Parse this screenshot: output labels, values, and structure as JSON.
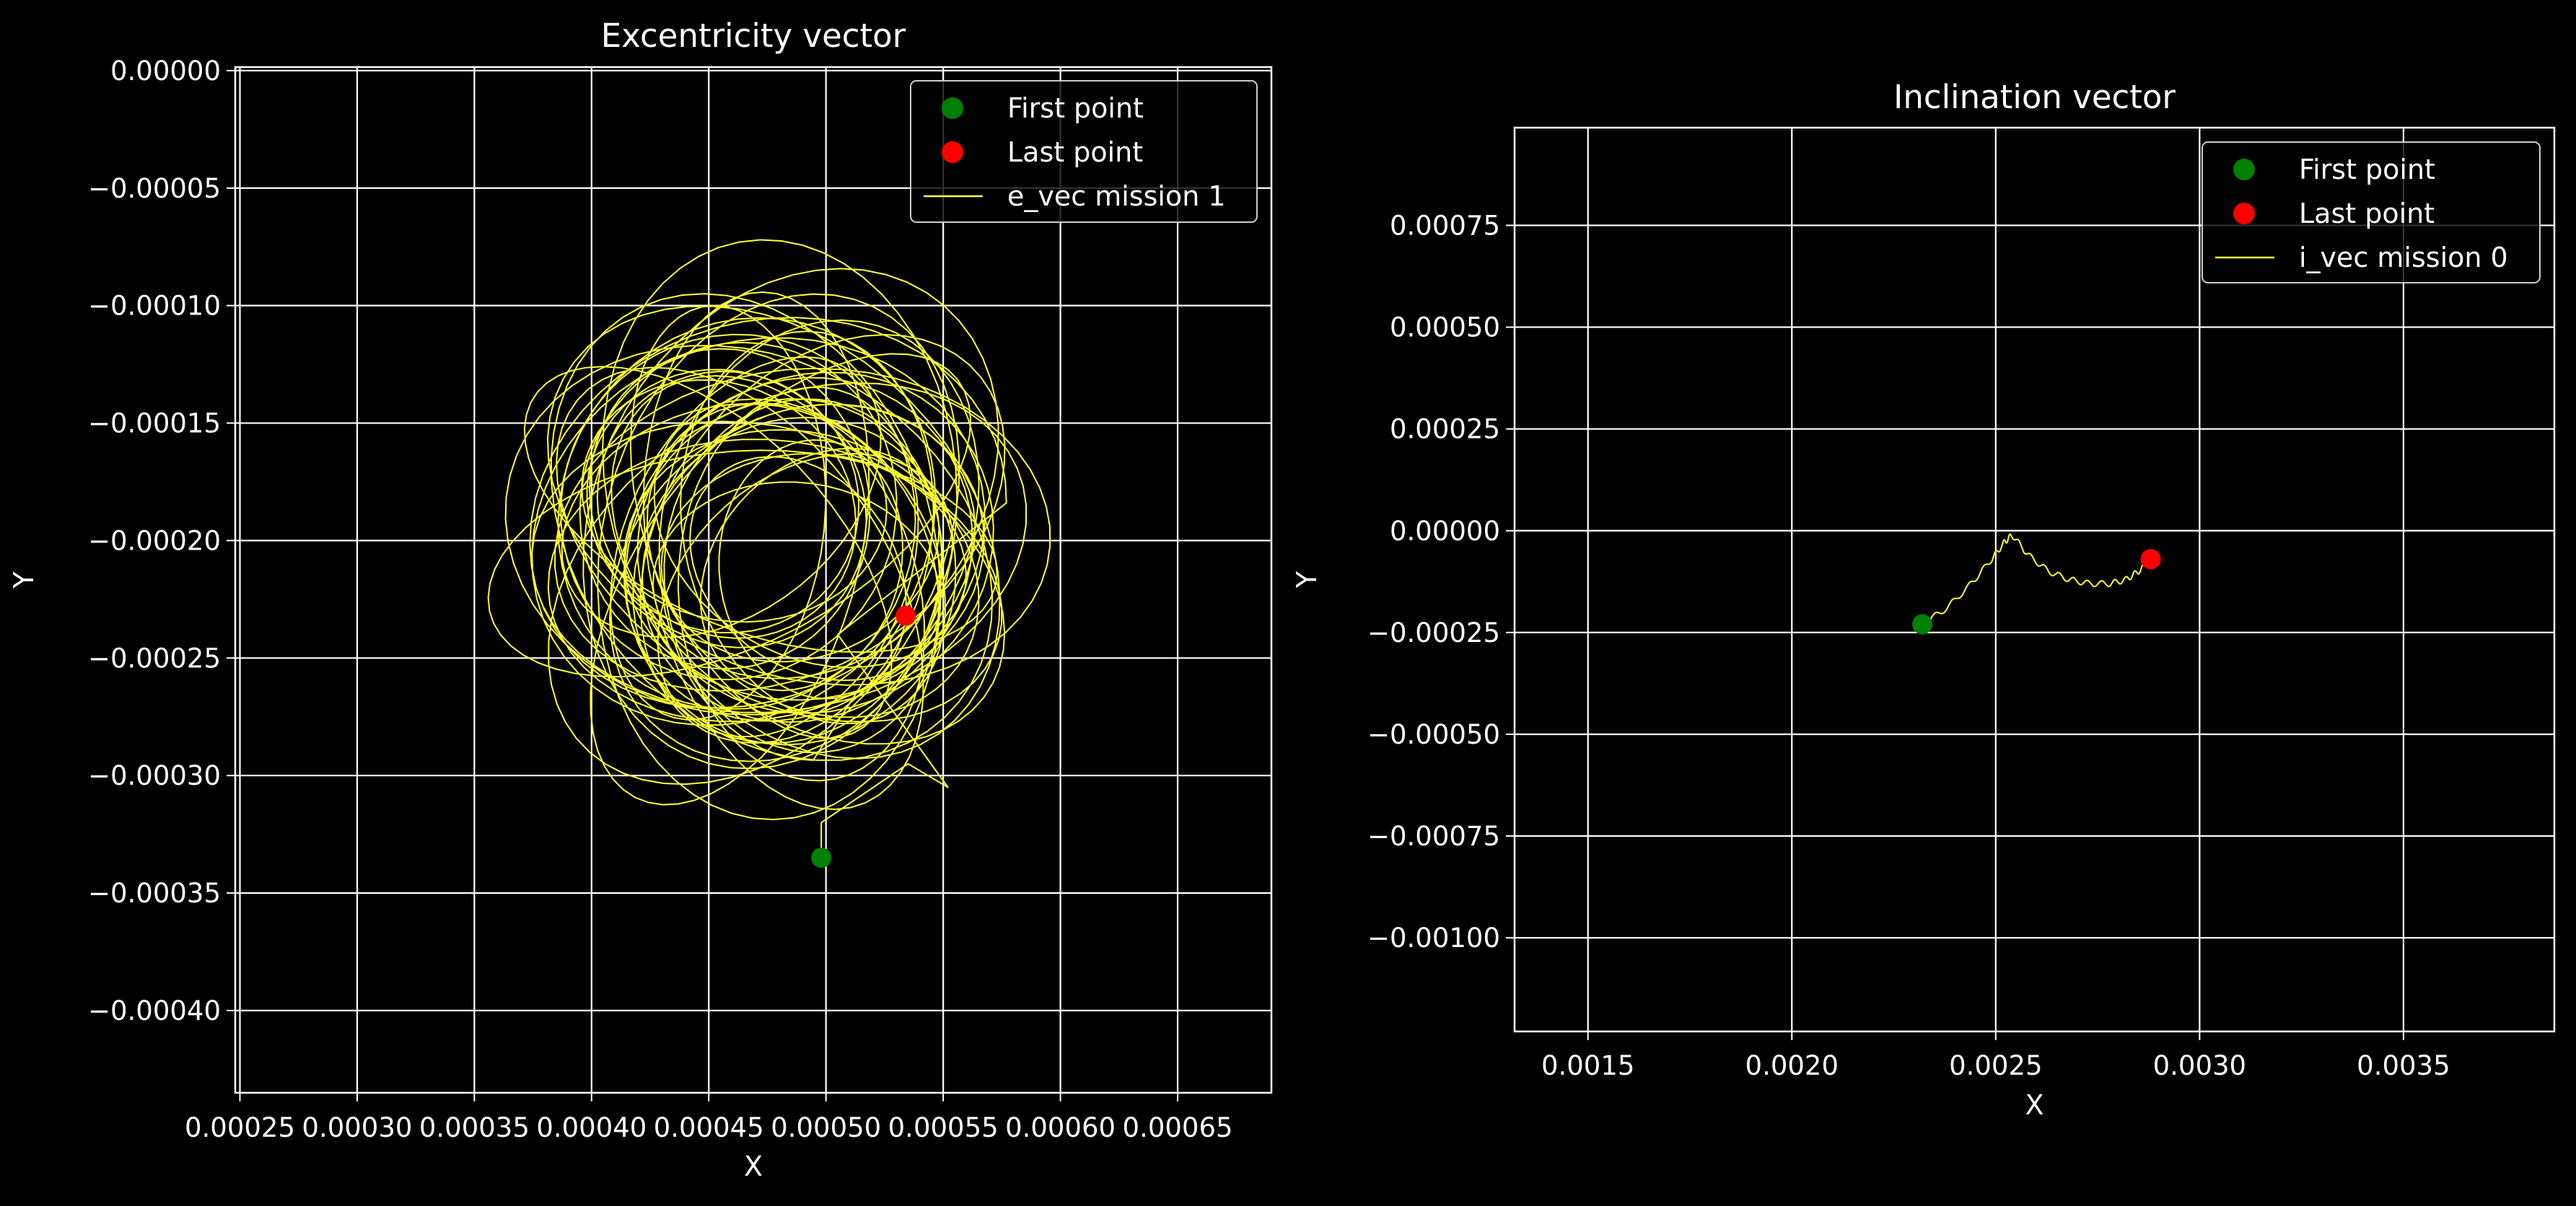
{
  "chart_data": [
    {
      "type": "scatter",
      "title": "Excentricity vector",
      "xlabel": "X",
      "ylabel": "Y",
      "xlim": [
        0.000248,
        0.00069
      ],
      "ylim": [
        -0.000435,
        1.5e-06
      ],
      "xticks": [
        0.00025,
        0.0003,
        0.00035,
        0.0004,
        0.00045,
        0.0005,
        0.00055,
        0.0006,
        0.00065
      ],
      "xtick_labels": [
        "0.00025",
        "0.00030",
        "0.00035",
        "0.00040",
        "0.00045",
        "0.00050",
        "0.00055",
        "0.00060",
        "0.00065"
      ],
      "yticks": [
        0.0,
        -5e-05,
        -0.0001,
        -0.00015,
        -0.0002,
        -0.00025,
        -0.0003,
        -0.00035,
        -0.0004
      ],
      "ytick_labels": [
        "0.00000",
        "−0.00005",
        "−0.00010",
        "−0.00015",
        "−0.00020",
        "−0.00025",
        "−0.00030",
        "−0.00035",
        "−0.00040"
      ],
      "grid": true,
      "legend_position": "top-right",
      "series": [
        {
          "name": "First point",
          "kind": "point",
          "color": "#008000",
          "x": [
            0.000498
          ],
          "y": [
            -0.000335
          ]
        },
        {
          "name": "Last point",
          "kind": "point",
          "color": "#ff0000",
          "x": [
            0.000534
          ],
          "y": [
            -0.000232
          ]
        },
        {
          "name": "e_vec mission 1",
          "kind": "line",
          "color": "#ffff33",
          "x": [],
          "y": []
        }
      ],
      "orbit": {
        "center": [
          0.000475,
          -0.0002
        ],
        "loops": 42,
        "path": [
          [
            0.000498,
            -0.000335
          ],
          [
            0.000498,
            -0.00032
          ],
          [
            0.000535,
            -0.000295
          ],
          [
            0.000552,
            -0.000305
          ],
          [
            0.000505,
            -0.00024
          ]
        ],
        "end": [
          0.000534,
          -0.000232
        ]
      }
    },
    {
      "type": "scatter",
      "title": "Inclination vector",
      "xlabel": "X",
      "ylabel": "Y",
      "xlim": [
        0.00132,
        0.00387
      ],
      "ylim": [
        -0.00123,
        0.00099
      ],
      "xticks": [
        0.0015,
        0.002,
        0.0025,
        0.003,
        0.0035
      ],
      "xtick_labels": [
        "0.0015",
        "0.0020",
        "0.0025",
        "0.0030",
        "0.0035"
      ],
      "yticks": [
        0.00075,
        0.0005,
        0.00025,
        0.0,
        -0.00025,
        -0.0005,
        -0.00075,
        -0.001
      ],
      "ytick_labels": [
        "0.00075",
        "0.00050",
        "0.00025",
        "0.00000",
        "−0.00025",
        "−0.00050",
        "−0.00075",
        "−0.00100"
      ],
      "grid": true,
      "legend_position": "top-right",
      "series": [
        {
          "name": "First point",
          "kind": "point",
          "color": "#008000",
          "x": [
            0.00232
          ],
          "y": [
            -0.00023
          ]
        },
        {
          "name": "Last point",
          "kind": "point",
          "color": "#ff0000",
          "x": [
            0.00288
          ],
          "y": [
            -7e-05
          ]
        },
        {
          "name": "i_vec mission 0",
          "kind": "line",
          "color": "#ffff33",
          "x": [
            0.00232,
            0.00238,
            0.00244,
            0.00249,
            0.00252,
            0.00254,
            0.00258,
            0.00263,
            0.00268,
            0.00273,
            0.00278,
            0.00282,
            0.00285,
            0.00288
          ],
          "y": [
            -0.00023,
            -0.00019,
            -0.00013,
            -7e-05,
            -3e-05,
            -1e-05,
            -6e-05,
            -0.0001,
            -0.00012,
            -0.00013,
            -0.00013,
            -0.00012,
            -0.0001,
            -7e-05
          ]
        }
      ]
    }
  ]
}
